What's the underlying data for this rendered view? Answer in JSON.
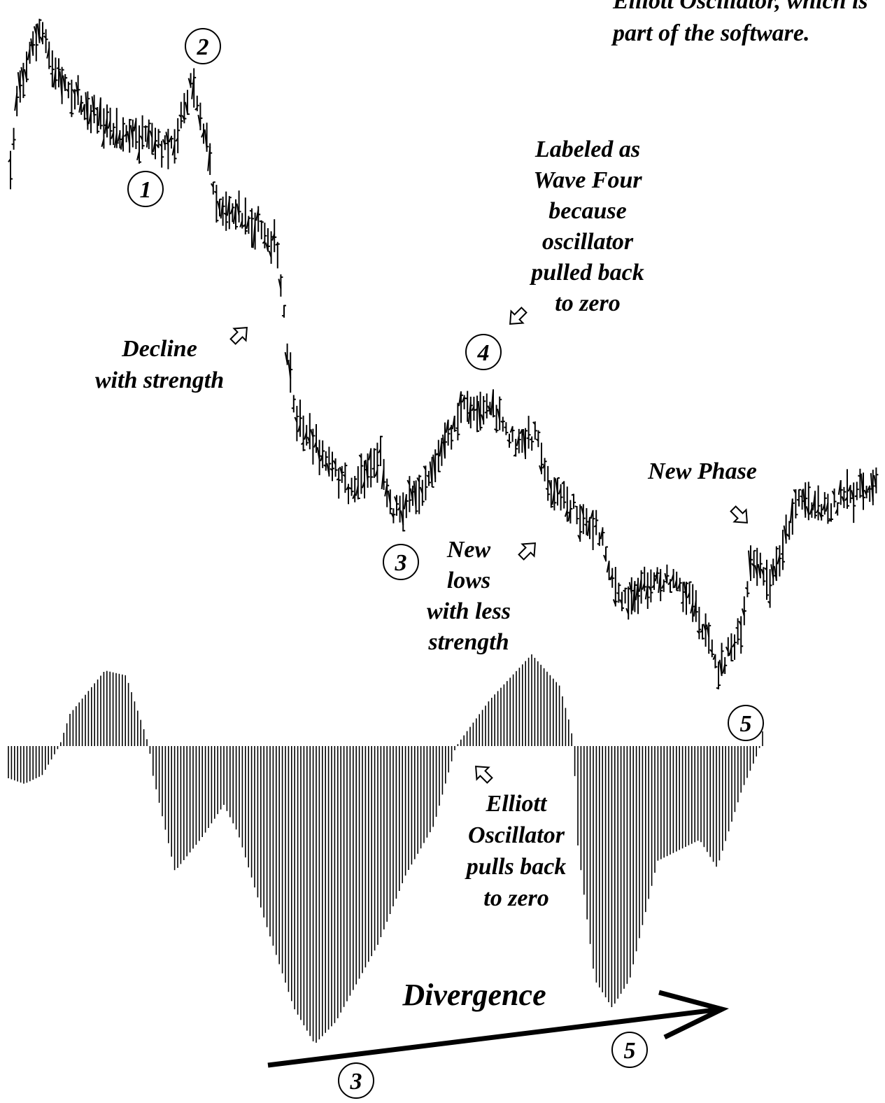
{
  "corner_note": {
    "lines": [
      "Elliott Oscillator, which  is",
      "part of the software."
    ]
  },
  "wave_labels": {
    "w1": "1",
    "w2": "2",
    "w3": "3",
    "w4": "4",
    "w5": "5",
    "osc5": "5",
    "div3": "3",
    "div5": "5"
  },
  "annotations": {
    "wave_four": [
      "Labeled as",
      "Wave Four",
      "because",
      "oscillator",
      "pulled back",
      "to zero"
    ],
    "decline": [
      "Decline",
      "with strength"
    ],
    "new_lows": [
      "New",
      "lows",
      "with less",
      "strength"
    ],
    "new_phase": [
      "New Phase"
    ],
    "oscillator": [
      "Elliott",
      "Oscillator",
      "pulls back",
      "to zero"
    ],
    "divergence": [
      "Divergence"
    ]
  }
}
